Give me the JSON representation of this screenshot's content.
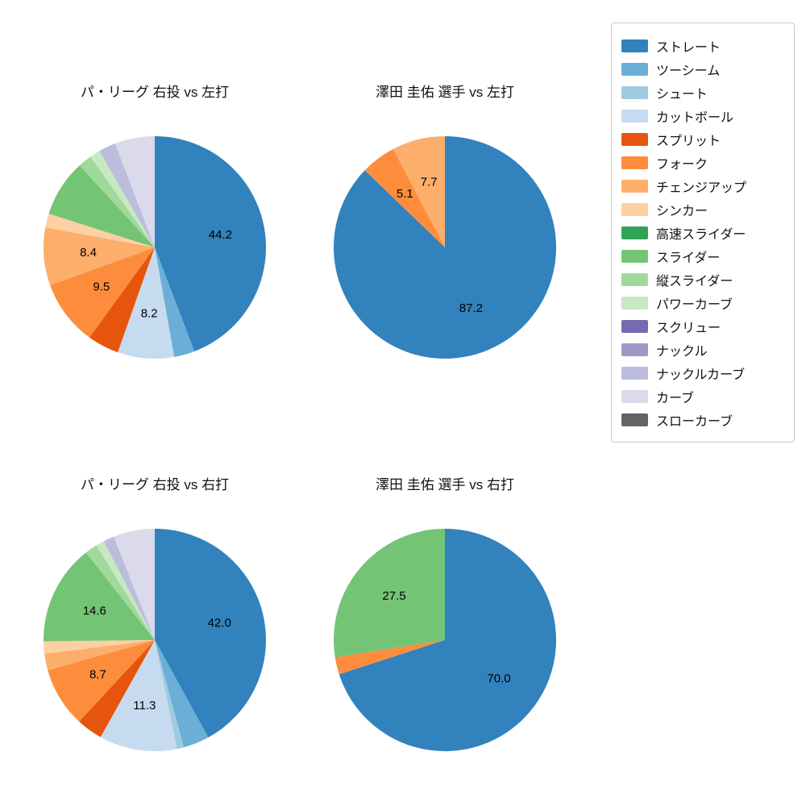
{
  "figure": {
    "background": "#ffffff"
  },
  "legend": {
    "position": "top-right",
    "items": [
      {
        "label": "ストレート",
        "color": "#3182bd"
      },
      {
        "label": "ツーシーム",
        "color": "#6baed6"
      },
      {
        "label": "シュート",
        "color": "#9ecae1"
      },
      {
        "label": "カットボール",
        "color": "#c6dbef"
      },
      {
        "label": "スプリット",
        "color": "#e6550d"
      },
      {
        "label": "フォーク",
        "color": "#fd8d3c"
      },
      {
        "label": "チェンジアップ",
        "color": "#fdae6b"
      },
      {
        "label": "シンカー",
        "color": "#fdd0a2"
      },
      {
        "label": "高速スライダー",
        "color": "#31a354"
      },
      {
        "label": "スライダー",
        "color": "#74c476"
      },
      {
        "label": "縦スライダー",
        "color": "#a1d99b"
      },
      {
        "label": "パワーカーブ",
        "color": "#c7e9c0"
      },
      {
        "label": "スクリュー",
        "color": "#756bb1"
      },
      {
        "label": "ナックル",
        "color": "#9e9ac8"
      },
      {
        "label": "ナックルカーブ",
        "color": "#bcbddc"
      },
      {
        "label": "カーブ",
        "color": "#dadaeb"
      },
      {
        "label": "スローカーブ",
        "color": "#636363"
      }
    ]
  },
  "chart_data": [
    {
      "type": "pie",
      "title": "パ・リーグ 右投 vs 左打",
      "start_angle": "12-oclock",
      "direction": "clockwise",
      "label_distance": 0.6,
      "slices": [
        {
          "name": "ストレート",
          "value": 44.2,
          "label": "44.2"
        },
        {
          "name": "ツーシーム",
          "value": 3.0,
          "label": null
        },
        {
          "name": "カットボール",
          "value": 8.2,
          "label": "8.2"
        },
        {
          "name": "スプリット",
          "value": 4.6,
          "label": null
        },
        {
          "name": "フォーク",
          "value": 9.5,
          "label": "9.5"
        },
        {
          "name": "チェンジアップ",
          "value": 8.4,
          "label": "8.4"
        },
        {
          "name": "シンカー",
          "value": 2.0,
          "label": null
        },
        {
          "name": "スライダー",
          "value": 8.3,
          "label": null
        },
        {
          "name": "縦スライダー",
          "value": 2.0,
          "label": null
        },
        {
          "name": "パワーカーブ",
          "value": 1.5,
          "label": null
        },
        {
          "name": "ナックルカーブ",
          "value": 2.5,
          "label": null
        },
        {
          "name": "カーブ",
          "value": 5.8,
          "label": null
        }
      ]
    },
    {
      "type": "pie",
      "title": "澤田 圭佑 選手 vs 左打",
      "start_angle": "12-oclock",
      "direction": "clockwise",
      "label_distance": 0.6,
      "slices": [
        {
          "name": "ストレート",
          "value": 87.2,
          "label": "87.2"
        },
        {
          "name": "フォーク",
          "value": 5.1,
          "label": "5.1"
        },
        {
          "name": "チェンジアップ",
          "value": 7.7,
          "label": "7.7"
        }
      ]
    },
    {
      "type": "pie",
      "title": "パ・リーグ 右投 vs 右打",
      "start_angle": "12-oclock",
      "direction": "clockwise",
      "label_distance": 0.6,
      "slices": [
        {
          "name": "ストレート",
          "value": 42.0,
          "label": "42.0"
        },
        {
          "name": "ツーシーム",
          "value": 3.8,
          "label": null
        },
        {
          "name": "シュート",
          "value": 1.0,
          "label": null
        },
        {
          "name": "カットボール",
          "value": 11.3,
          "label": "11.3"
        },
        {
          "name": "スプリット",
          "value": 3.8,
          "label": null
        },
        {
          "name": "フォーク",
          "value": 8.7,
          "label": "8.7"
        },
        {
          "name": "チェンジアップ",
          "value": 2.4,
          "label": null
        },
        {
          "name": "シンカー",
          "value": 1.8,
          "label": null
        },
        {
          "name": "スライダー",
          "value": 14.6,
          "label": "14.6"
        },
        {
          "name": "縦スライダー",
          "value": 1.8,
          "label": null
        },
        {
          "name": "パワーカーブ",
          "value": 1.2,
          "label": null
        },
        {
          "name": "ナックルカーブ",
          "value": 1.6,
          "label": null
        },
        {
          "name": "カーブ",
          "value": 6.0,
          "label": null
        }
      ]
    },
    {
      "type": "pie",
      "title": "澤田 圭佑 選手 vs 右打",
      "start_angle": "12-oclock",
      "direction": "clockwise",
      "label_distance": 0.6,
      "slices": [
        {
          "name": "ストレート",
          "value": 70.0,
          "label": "70.0"
        },
        {
          "name": "フォーク",
          "value": 2.5,
          "label": null
        },
        {
          "name": "スライダー",
          "value": 27.5,
          "label": "27.5"
        }
      ]
    }
  ]
}
